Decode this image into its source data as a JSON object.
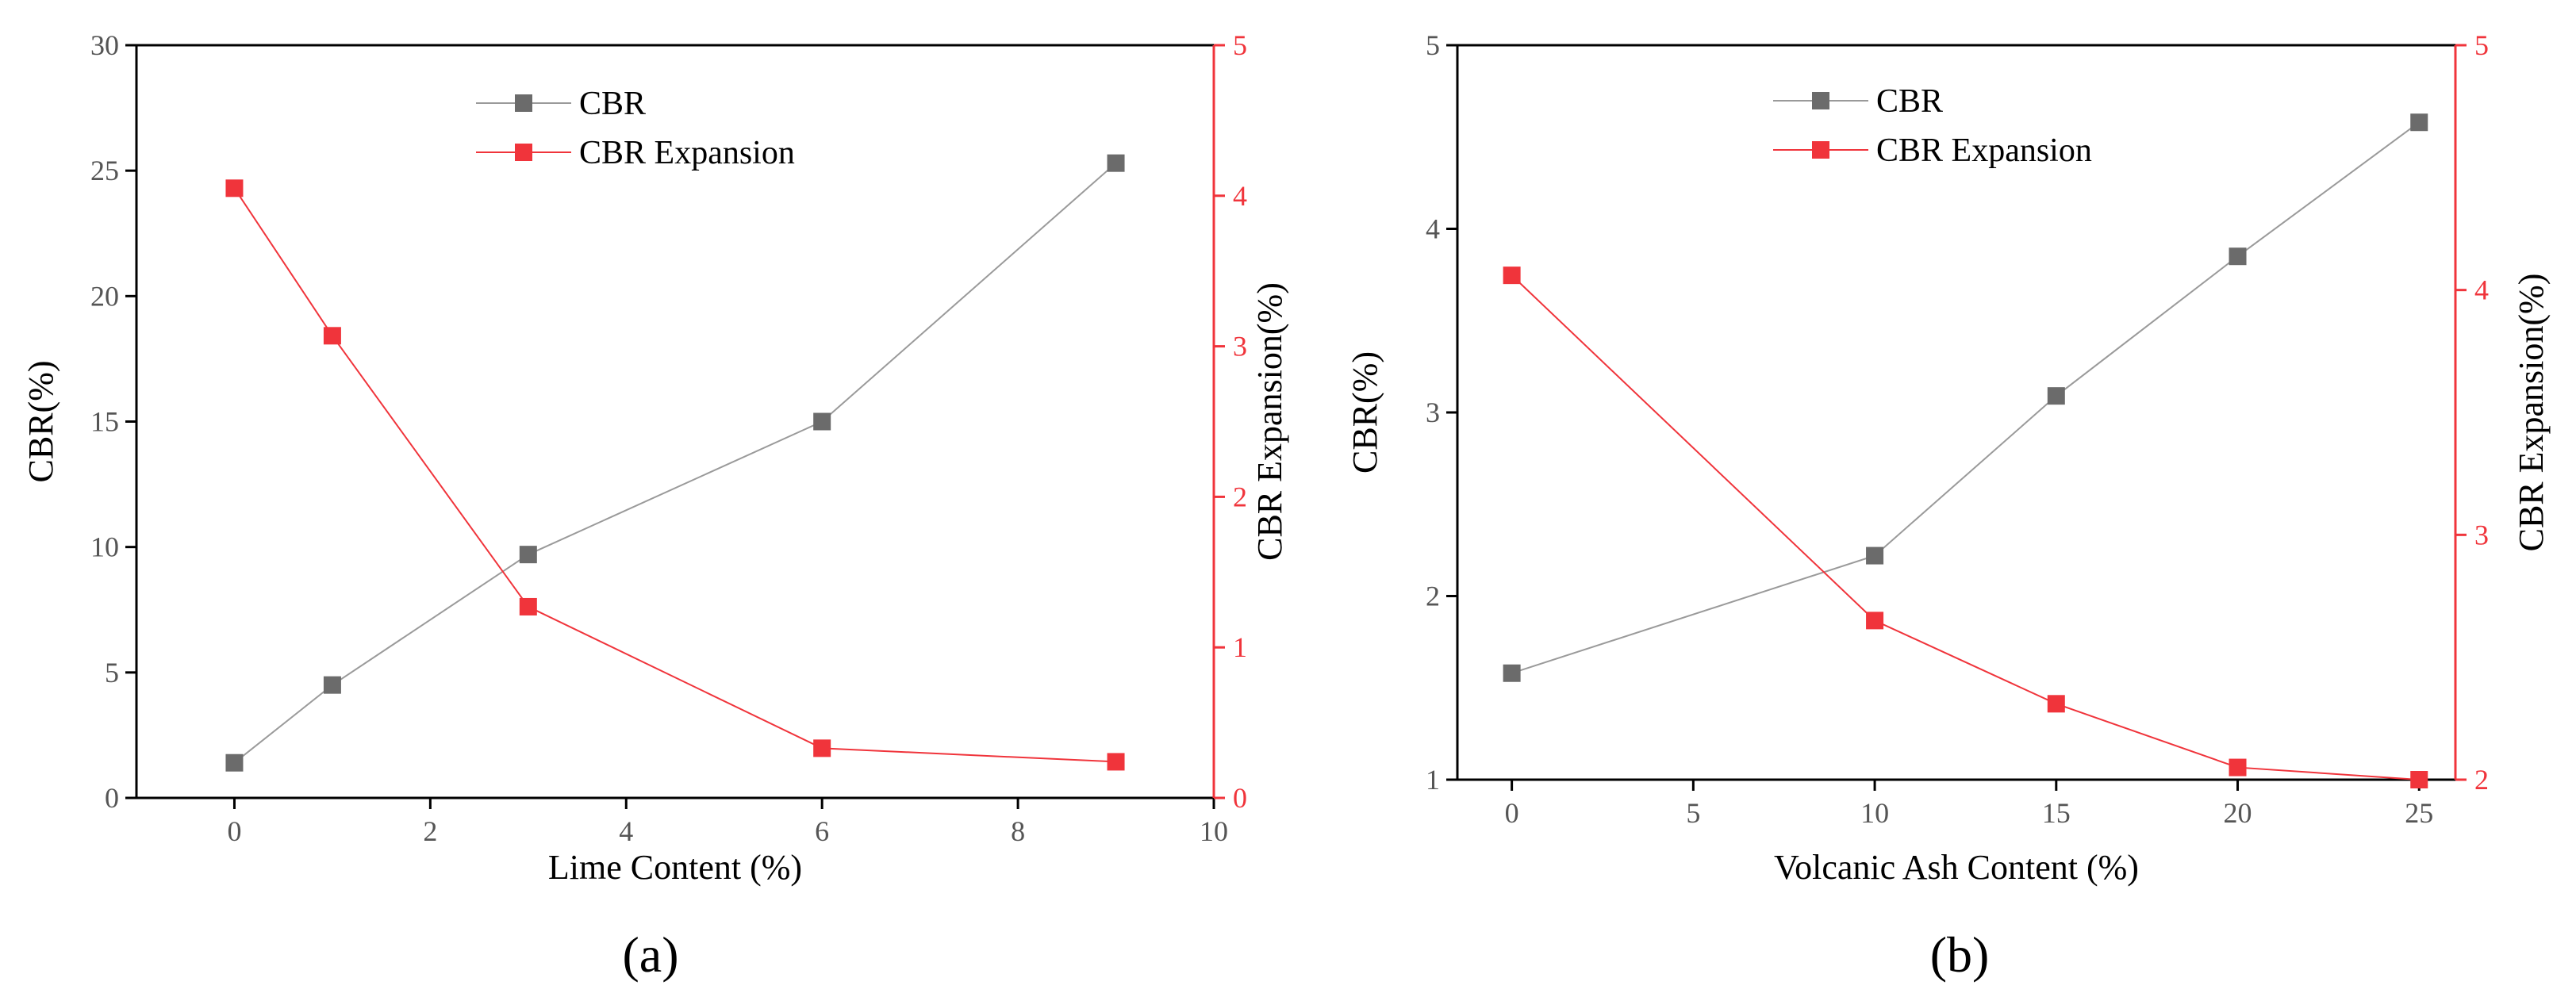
{
  "colors": {
    "cbr": "#6b6b6b",
    "cbr_line": "#9a9a9a",
    "expansion": "#f0343b",
    "axis": "#000000",
    "left_axis_text": "#555555"
  },
  "chart_data": [
    {
      "type": "line",
      "panel_label": "(a)",
      "xlabel": "Lime Content (%)",
      "ylabel": "CBR(%)",
      "y2label": "CBR Expansion(%)",
      "xlim": [
        -1,
        10
      ],
      "ylim": [
        0,
        30
      ],
      "y2lim": [
        0,
        5
      ],
      "x_ticks": [
        0,
        2,
        4,
        6,
        8,
        10
      ],
      "y_ticks": [
        0,
        5,
        10,
        15,
        20,
        25,
        30
      ],
      "y2_ticks": [
        0,
        1,
        2,
        3,
        4,
        5
      ],
      "legend_position": "top-center",
      "grid": false,
      "series": [
        {
          "name": "CBR",
          "axis": "left",
          "x": [
            0,
            1,
            3,
            6,
            9
          ],
          "values": [
            1.4,
            4.5,
            9.7,
            15.0,
            25.3
          ]
        },
        {
          "name": "CBR Expansion",
          "axis": "right",
          "x": [
            0,
            1,
            3,
            6,
            9
          ],
          "values": [
            4.05,
            3.07,
            1.27,
            0.33,
            0.24
          ]
        }
      ]
    },
    {
      "type": "line",
      "panel_label": "(b)",
      "xlabel": "Volcanic Ash Content (%)",
      "ylabel": "CBR(%)",
      "y2label": "CBR Expansion(%)",
      "xlim": [
        -1.5,
        26
      ],
      "ylim": [
        1,
        5
      ],
      "y2lim": [
        2,
        5
      ],
      "x_ticks": [
        0,
        5,
        10,
        15,
        20,
        25
      ],
      "y_ticks": [
        1,
        2,
        3,
        4,
        5
      ],
      "y2_ticks": [
        2,
        3,
        4,
        5
      ],
      "legend_position": "top-center",
      "grid": false,
      "series": [
        {
          "name": "CBR",
          "axis": "left",
          "x": [
            0,
            10,
            15,
            20,
            25
          ],
          "values": [
            1.58,
            2.22,
            3.09,
            3.85,
            4.58
          ]
        },
        {
          "name": "CBR Expansion",
          "axis": "right",
          "x": [
            0,
            10,
            15,
            20,
            25
          ],
          "values": [
            4.06,
            2.65,
            2.31,
            2.05,
            2.0
          ]
        }
      ]
    }
  ]
}
